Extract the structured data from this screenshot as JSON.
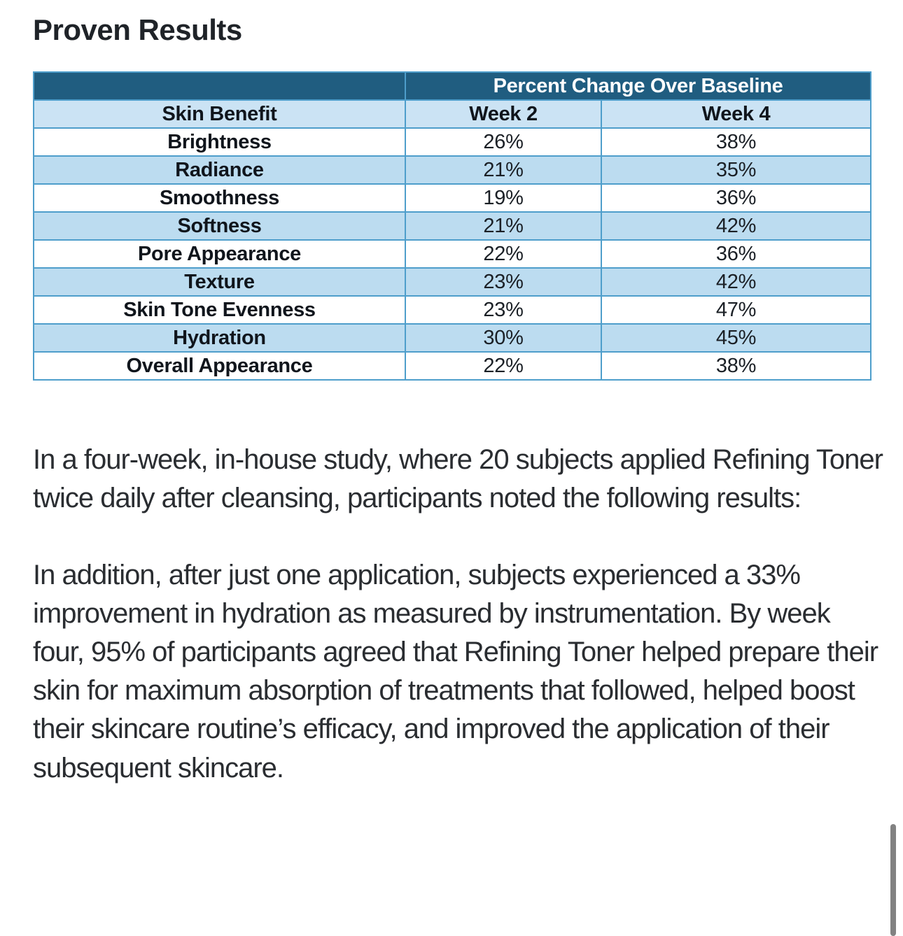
{
  "page_title": "Proven Results",
  "table": {
    "group_header": "Percent Change Over Baseline",
    "columns": [
      "Skin Benefit",
      "Week 2",
      "Week 4"
    ],
    "rows": [
      {
        "benefit": "Brightness",
        "week2": "26%",
        "week4": "38%"
      },
      {
        "benefit": "Radiance",
        "week2": "21%",
        "week4": "35%"
      },
      {
        "benefit": "Smoothness",
        "week2": "19%",
        "week4": "36%"
      },
      {
        "benefit": "Softness",
        "week2": "21%",
        "week4": "42%"
      },
      {
        "benefit": "Pore Appearance",
        "week2": "22%",
        "week4": "36%"
      },
      {
        "benefit": "Texture",
        "week2": "23%",
        "week4": "42%"
      },
      {
        "benefit": "Skin Tone Evenness",
        "week2": "23%",
        "week4": "47%"
      },
      {
        "benefit": "Hydration",
        "week2": "30%",
        "week4": "45%"
      },
      {
        "benefit": "Overall Appearance",
        "week2": "22%",
        "week4": "38%"
      }
    ]
  },
  "paragraphs": [
    "In a four-week, in-house study, where 20 subjects applied Refining Toner twice daily after cleansing, participants noted the following results:",
    "In addition, after just one application, subjects experienced a 33% improvement in hydration as measured by instrumentation. By week four, 95% of participants agreed that Refining Toner helped prepare their skin for maximum absorption of treatments that followed, helped boost their skincare routine’s efficacy, and improved the application of their subsequent skincare."
  ],
  "colors": {
    "group_header_bg": "#205d80",
    "group_header_text": "#ffffff",
    "column_header_bg": "#cbe3f4",
    "row_alt_bg": "#bcdcf0",
    "table_border": "#4e9ecb",
    "scrollbar": "#828282"
  }
}
